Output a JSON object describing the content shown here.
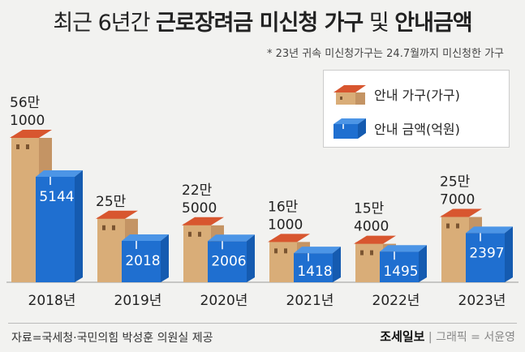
{
  "title_prefix": "최근 6년간",
  "title_bold": "근로장려금 미신청 가구",
  "title_mid": "및",
  "title_bold2": "안내금액",
  "note": "* 23년 귀속 미신청가구는 24.7월까지 미신청한 가구",
  "source": "자료=국세청·국민의힘 박성훈 의원실 제공",
  "brand_logo": "조세일보",
  "brand_credit": "| 그래픽 = 서윤영",
  "colors": {
    "house_wall": "#d9ad78",
    "house_roof": "#d8562f",
    "box": "#1f6fd0"
  },
  "chart_data": {
    "type": "bar",
    "categories": [
      "2018년",
      "2019년",
      "2020년",
      "2021년",
      "2022년",
      "2023년"
    ],
    "series": [
      {
        "name": "안내 가구(가구)",
        "values": [
          561000,
          250000,
          225000,
          161000,
          154000,
          257000
        ],
        "labels": [
          [
            "56만",
            "1000"
          ],
          [
            "25만"
          ],
          [
            "22만",
            "5000"
          ],
          [
            "16만",
            "1000"
          ],
          [
            "15만",
            "4000"
          ],
          [
            "25만",
            "7000"
          ]
        ]
      },
      {
        "name": "안내 금액(억원)",
        "values": [
          5144,
          2018,
          2006,
          1418,
          1495,
          2397
        ],
        "labels": [
          "5144",
          "2018",
          "2006",
          "1418",
          "1495",
          "2397"
        ]
      }
    ],
    "legend_position": "top-right"
  }
}
